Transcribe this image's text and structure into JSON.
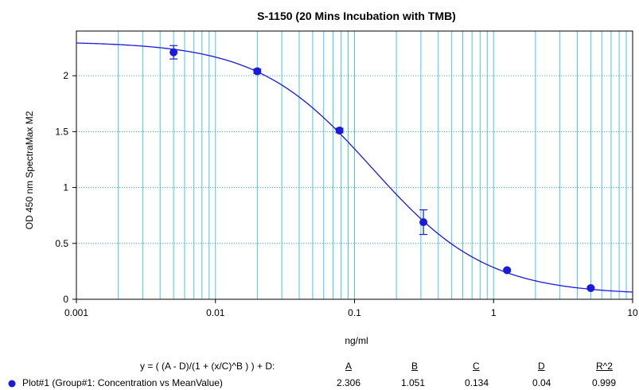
{
  "chart_data": {
    "type": "scatter",
    "title": "S-1150 (20 Mins Incubation with TMB)",
    "xlabel": "ng/ml",
    "ylabel": "OD 450 nm SpectraMax M2",
    "x_scale": "log",
    "xlim": [
      0.001,
      10
    ],
    "ylim": [
      0,
      2.4
    ],
    "x_ticks": [
      0.001,
      0.01,
      0.1,
      1,
      10
    ],
    "x_tick_labels": [
      "0.001",
      "0.01",
      "0.1",
      "1",
      "10"
    ],
    "y_ticks": [
      0,
      0.5,
      1,
      1.5,
      2
    ],
    "y_tick_labels": [
      "0",
      "0.5",
      "1",
      "1.5",
      "2"
    ],
    "grid": true,
    "legend_position": "bottom-left",
    "series": [
      {
        "name": "Plot#1 (Group#1: Concentration vs MeanValue)",
        "color": "#1a1adc",
        "x": [
          0.005,
          0.02,
          0.078,
          0.313,
          1.25,
          5
        ],
        "y": [
          2.21,
          2.04,
          1.51,
          0.69,
          0.26,
          0.1
        ],
        "y_err": [
          0.06,
          0.02,
          0.02,
          0.11,
          0.01,
          0.01
        ]
      }
    ],
    "fit": {
      "equation": "y = ( (A - D)/(1 + (x/C)^B ) ) + D:",
      "headers": [
        "A",
        "B",
        "C",
        "D",
        "R^2"
      ],
      "values": [
        "2.306",
        "1.051",
        "0.134",
        "0.04",
        "0.999"
      ],
      "params": {
        "A": 2.306,
        "B": 1.051,
        "C": 0.134,
        "D": 0.04
      }
    }
  }
}
